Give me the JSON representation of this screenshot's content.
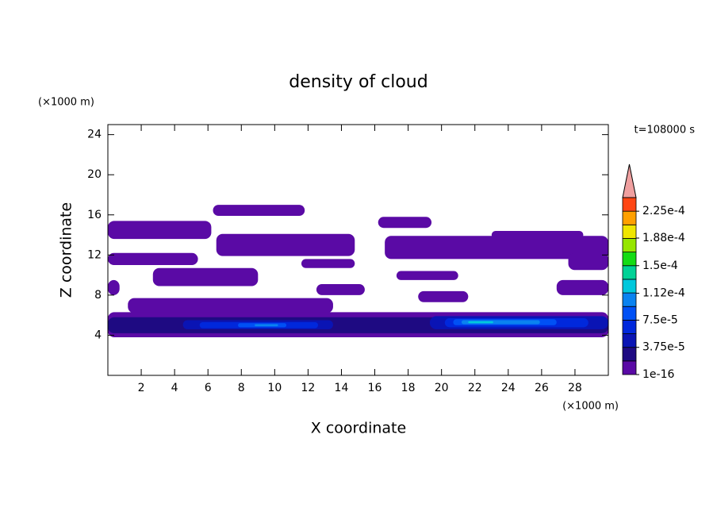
{
  "chart_data": {
    "type": "contour",
    "title": "density of cloud",
    "x_label": "X coordinate",
    "y_label": "Z coordinate",
    "x_unit": "(×1000 m)",
    "y_unit": "(×1000 m)",
    "time_label": "t=108000 s",
    "xlim": [
      0,
      30
    ],
    "ylim": [
      0,
      25
    ],
    "xticks": [
      2,
      4,
      6,
      8,
      10,
      12,
      14,
      16,
      18,
      20,
      22,
      24,
      26,
      28
    ],
    "yticks": [
      4,
      8,
      12,
      16,
      20,
      24
    ],
    "levels": [
      1e-16,
      1.875e-05,
      3.75e-05,
      5.625e-05,
      7.5e-05,
      9.375e-05,
      0.0001125,
      0.00013125,
      0.00015,
      0.00016875,
      0.0001875,
      0.00020625,
      0.000225,
      0.00024375
    ],
    "colors": [
      "#5a0aa5",
      "#1e0a82",
      "#0a14b4",
      "#0028dc",
      "#0050f5",
      "#0a82f0",
      "#00c8dc",
      "#00d296",
      "#14dc14",
      "#96e600",
      "#f0e600",
      "#ffa000",
      "#ff4614"
    ],
    "extend_color": "#f0a0a0",
    "colorbar_ticks": [
      {
        "value": 1e-16,
        "label": "1e-16"
      },
      {
        "value": 3.75e-05,
        "label": "3.75e-5"
      },
      {
        "value": 7.5e-05,
        "label": "7.5e-5"
      },
      {
        "value": 0.000112,
        "label": "1.12e-4"
      },
      {
        "value": 0.00015,
        "label": "1.5e-4"
      },
      {
        "value": 0.000188,
        "label": "1.88e-4"
      },
      {
        "value": 0.000225,
        "label": "2.25e-4"
      }
    ],
    "regions": [
      {
        "x": [
          0,
          6.2
        ],
        "z": [
          13.6,
          15.4
        ],
        "level": 1e-16
      },
      {
        "x": [
          6.3,
          11.8
        ],
        "z": [
          15.9,
          17.0
        ],
        "level": 1e-16
      },
      {
        "x": [
          6.5,
          14.8
        ],
        "z": [
          11.9,
          14.1
        ],
        "level": 1e-16
      },
      {
        "x": [
          0,
          5.4
        ],
        "z": [
          11.0,
          12.2
        ],
        "level": 1e-16
      },
      {
        "x": [
          2.7,
          9.0
        ],
        "z": [
          8.9,
          10.7
        ],
        "level": 1e-16
      },
      {
        "x": [
          11.6,
          14.8
        ],
        "z": [
          10.7,
          11.6
        ],
        "level": 1e-16
      },
      {
        "x": [
          16.2,
          19.4
        ],
        "z": [
          14.7,
          15.8
        ],
        "level": 1e-16
      },
      {
        "x": [
          16.6,
          30
        ],
        "z": [
          11.6,
          13.9
        ],
        "level": 1e-16
      },
      {
        "x": [
          23,
          28.5
        ],
        "z": [
          13.6,
          14.4
        ],
        "level": 1e-16
      },
      {
        "x": [
          17.3,
          21
        ],
        "z": [
          9.5,
          10.4
        ],
        "level": 1e-16
      },
      {
        "x": [
          18.6,
          21.6
        ],
        "z": [
          7.3,
          8.4
        ],
        "level": 1e-16
      },
      {
        "x": [
          27.6,
          30
        ],
        "z": [
          10.5,
          12.2
        ],
        "level": 1e-16
      },
      {
        "x": [
          0,
          0.7
        ],
        "z": [
          8,
          9.5
        ],
        "level": 1e-16
      },
      {
        "x": [
          12.5,
          15.4
        ],
        "z": [
          8,
          9.1
        ],
        "level": 1e-16
      },
      {
        "x": [
          26.9,
          30
        ],
        "z": [
          8,
          9.5
        ],
        "level": 1e-16
      },
      {
        "x": [
          1.2,
          13.5
        ],
        "z": [
          6.2,
          7.7
        ],
        "level": 1e-16
      },
      {
        "x": [
          0,
          30
        ],
        "z": [
          3.8,
          6.3
        ],
        "level": 1e-16
      },
      {
        "x": [
          0,
          30
        ],
        "z": [
          4.2,
          5.8
        ],
        "level": 1.875e-05
      },
      {
        "x": [
          4.5,
          13.5
        ],
        "z": [
          4.6,
          5.5
        ],
        "level": 3.75e-05
      },
      {
        "x": [
          19.3,
          30
        ],
        "z": [
          4.6,
          5.9
        ],
        "level": 3.75e-05
      },
      {
        "x": [
          5.5,
          12.6
        ],
        "z": [
          4.7,
          5.3
        ],
        "level": 5.625e-05
      },
      {
        "x": [
          20.2,
          28.8
        ],
        "z": [
          4.8,
          5.7
        ],
        "level": 5.625e-05
      },
      {
        "x": [
          7.8,
          10.7
        ],
        "z": [
          4.8,
          5.2
        ],
        "level": 7.5e-05
      },
      {
        "x": [
          20.7,
          26.9
        ],
        "z": [
          5.0,
          5.6
        ],
        "level": 7.5e-05
      },
      {
        "x": [
          8.8,
          10.2
        ],
        "z": [
          4.9,
          5.1
        ],
        "level": 9.375e-05
      },
      {
        "x": [
          21.2,
          25.9
        ],
        "z": [
          5.1,
          5.5
        ],
        "level": 9.375e-05
      },
      {
        "x": [
          21.6,
          23.1
        ],
        "z": [
          5.2,
          5.4
        ],
        "level": 0.0001125
      }
    ]
  }
}
